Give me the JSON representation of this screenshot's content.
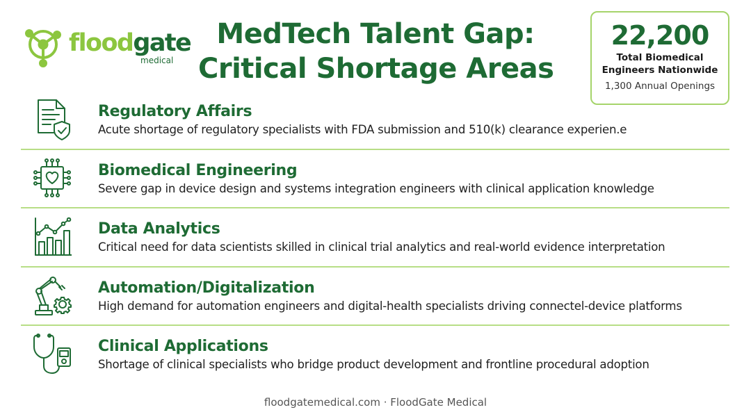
{
  "logo": {
    "word_a": "flood",
    "word_b": "gate",
    "sub": "medical"
  },
  "title": {
    "line1": "MedTech Talent Gap:",
    "line2": "Critical Shortage Areas"
  },
  "stat": {
    "value": "22,200",
    "label_line1": "Total Biomedical",
    "label_line2": "Engineers Nationwide",
    "openings": "1,300 Annual Openings"
  },
  "areas": [
    {
      "icon": "document-shield-icon",
      "title": "Regulatory Affairs",
      "desc": "Acute shortage of regulatory specialists with FDA submission and 510(k) clearance experien.e"
    },
    {
      "icon": "chip-heart-icon",
      "title": "Biomedical Engineering",
      "desc": "Severe gap in device design and systems integration engineers with clinical application knowledge"
    },
    {
      "icon": "bar-chart-icon",
      "title": "Data Analytics",
      "desc": "Critical need for data scientists skilled in clinical trial analytics and real-world evidence interpretation"
    },
    {
      "icon": "robot-arm-gear-icon",
      "title": "Automation/Digitalization",
      "desc": "High demand for automation engineers and digital-health specialists driving connectel-device platforms"
    },
    {
      "icon": "stethoscope-device-icon",
      "title": "Clinical Applications",
      "desc": "Shortage of clinical specialists who bridge product development and frontline procedural adoption"
    }
  ],
  "footer": "floodgatemedical.com · FloodGate Medical",
  "colors": {
    "primary": "#1e6b34",
    "accent": "#8cc63f",
    "divider": "#b7de86"
  }
}
